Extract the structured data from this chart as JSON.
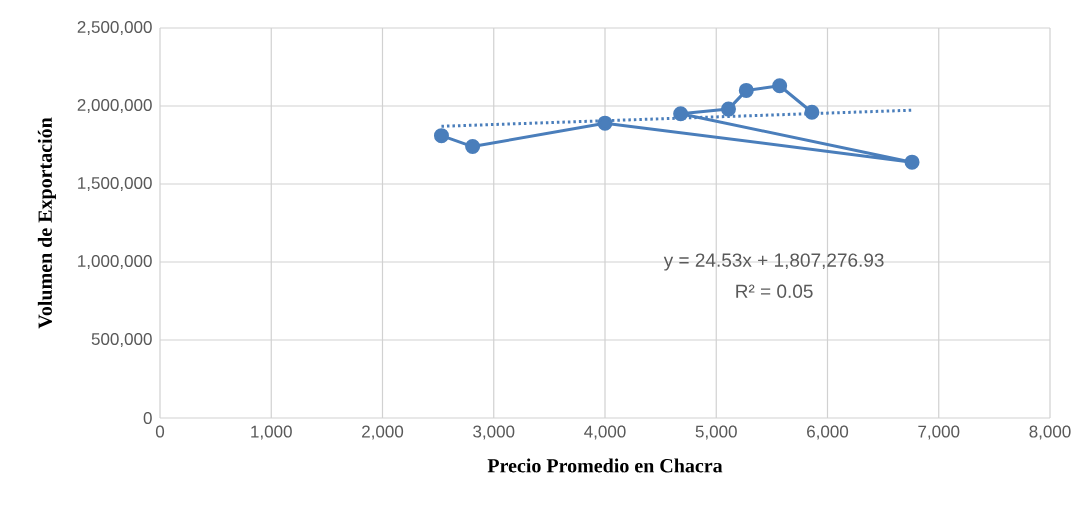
{
  "chart_data": {
    "type": "line",
    "xlabel": "Precio Promedio  en Chacra",
    "ylabel": "Volumen  de  Exportación",
    "xlim": [
      0,
      8000
    ],
    "ylim": [
      0,
      2500000
    ],
    "xticks": [
      {
        "value": 0,
        "label": "0"
      },
      {
        "value": 1000,
        "label": "1,000"
      },
      {
        "value": 2000,
        "label": "2,000"
      },
      {
        "value": 3000,
        "label": "3,000"
      },
      {
        "value": 4000,
        "label": "4,000"
      },
      {
        "value": 5000,
        "label": "5,000"
      },
      {
        "value": 6000,
        "label": "6,000"
      },
      {
        "value": 7000,
        "label": "7,000"
      },
      {
        "value": 8000,
        "label": "8,000"
      }
    ],
    "yticks": [
      {
        "value": 0,
        "label": "0"
      },
      {
        "value": 500000,
        "label": "500,000"
      },
      {
        "value": 1000000,
        "label": "1,000,000"
      },
      {
        "value": 1500000,
        "label": "1,500,000"
      },
      {
        "value": 2000000,
        "label": "2,000,000"
      },
      {
        "value": 2500000,
        "label": "2,500,000"
      }
    ],
    "grid": true,
    "legend": false,
    "series": [
      {
        "color": "#4a7ebb",
        "marker": "circle",
        "line_style": "solid",
        "x": [
          2530,
          2810,
          4000,
          6760,
          4680,
          5110,
          5270,
          5570,
          5860
        ],
        "values": [
          1810000,
          1740000,
          1890000,
          1640000,
          1950000,
          1980000,
          2100000,
          2130000,
          1960000
        ]
      },
      {
        "color": "#4a7ebb",
        "marker": "none",
        "line_style": "dotted",
        "x": [
          2530,
          6760
        ],
        "values": [
          1870000,
          1973000
        ]
      }
    ],
    "annotations": [
      "y = 24.53x + 1,807,276.93",
      "R² = 0.05"
    ]
  }
}
